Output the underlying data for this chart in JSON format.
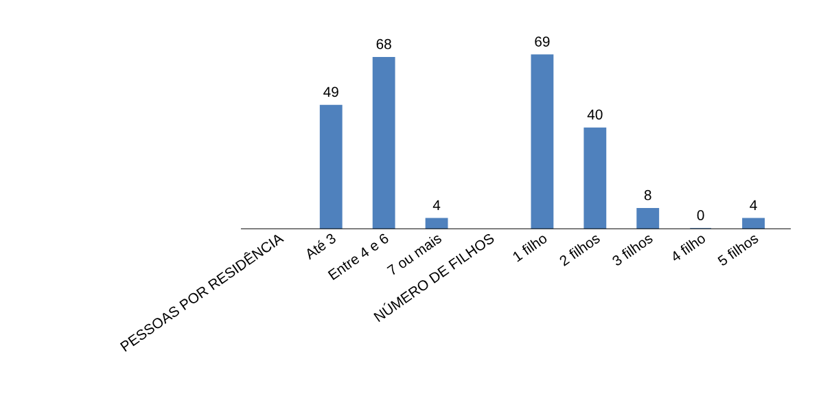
{
  "chart_data": {
    "type": "bar",
    "categories": [
      "PESSOAS POR RESIDÊNCIA",
      "Até 3",
      "Entre 4 e 6",
      "7 ou mais",
      "NÚMERO DE FILHOS",
      "1 filho",
      "2 filhos",
      "3 filhos",
      "4 filho",
      "5 filhos"
    ],
    "values": [
      null,
      49,
      68,
      4,
      null,
      69,
      40,
      8,
      0,
      4
    ],
    "color": "#4f81bd",
    "data_labels": true
  }
}
